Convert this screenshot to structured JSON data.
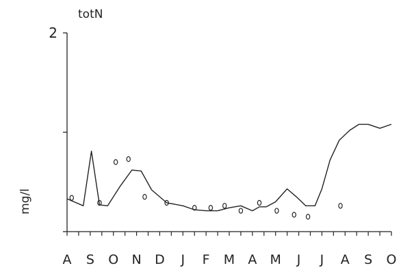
{
  "chart_data": {
    "type": "line",
    "title": "totN",
    "ylabel": "mg/l",
    "xlabel": "",
    "x_tick_labels": [
      "A",
      "S",
      "O",
      "N",
      "D",
      "J",
      "F",
      "M",
      "A",
      "M",
      "J",
      "J",
      "A",
      "S",
      "O"
    ],
    "y_tick_labels": [
      {
        "value": 0,
        "label": ""
      },
      {
        "value": 1,
        "label": ""
      },
      {
        "value": 2,
        "label": "2"
      }
    ],
    "xlim": [
      0,
      14
    ],
    "ylim": [
      0,
      2
    ],
    "grid": false,
    "series": [
      {
        "style": "line",
        "x": [
          0,
          0.7,
          1.05,
          1.4,
          1.75,
          2.3,
          2.8,
          3.2,
          3.65,
          4.3,
          5,
          5.5,
          6,
          6.5,
          7,
          7.5,
          8,
          8.3,
          8.6,
          9,
          9.5,
          9.9,
          10.3,
          10.7,
          11,
          11.35,
          11.75,
          12.2,
          12.6,
          13,
          13.5,
          14
        ],
        "y": [
          0.33,
          0.26,
          0.81,
          0.27,
          0.26,
          0.46,
          0.62,
          0.61,
          0.42,
          0.29,
          0.26,
          0.22,
          0.21,
          0.21,
          0.24,
          0.26,
          0.21,
          0.25,
          0.25,
          0.3,
          0.43,
          0.35,
          0.26,
          0.26,
          0.43,
          0.72,
          0.92,
          1.02,
          1.08,
          1.08,
          1.04,
          1.08
        ]
      },
      {
        "style": "markers",
        "x": [
          0.2,
          1.4,
          2.1,
          2.65,
          3.35,
          4.3,
          5.5,
          6.2,
          6.8,
          7.5,
          8.3,
          9.05,
          9.8,
          10.4,
          11.8
        ],
        "y": [
          0.34,
          0.29,
          0.7,
          0.73,
          0.35,
          0.29,
          0.24,
          0.24,
          0.26,
          0.21,
          0.29,
          0.21,
          0.17,
          0.15,
          0.26
        ]
      }
    ]
  }
}
